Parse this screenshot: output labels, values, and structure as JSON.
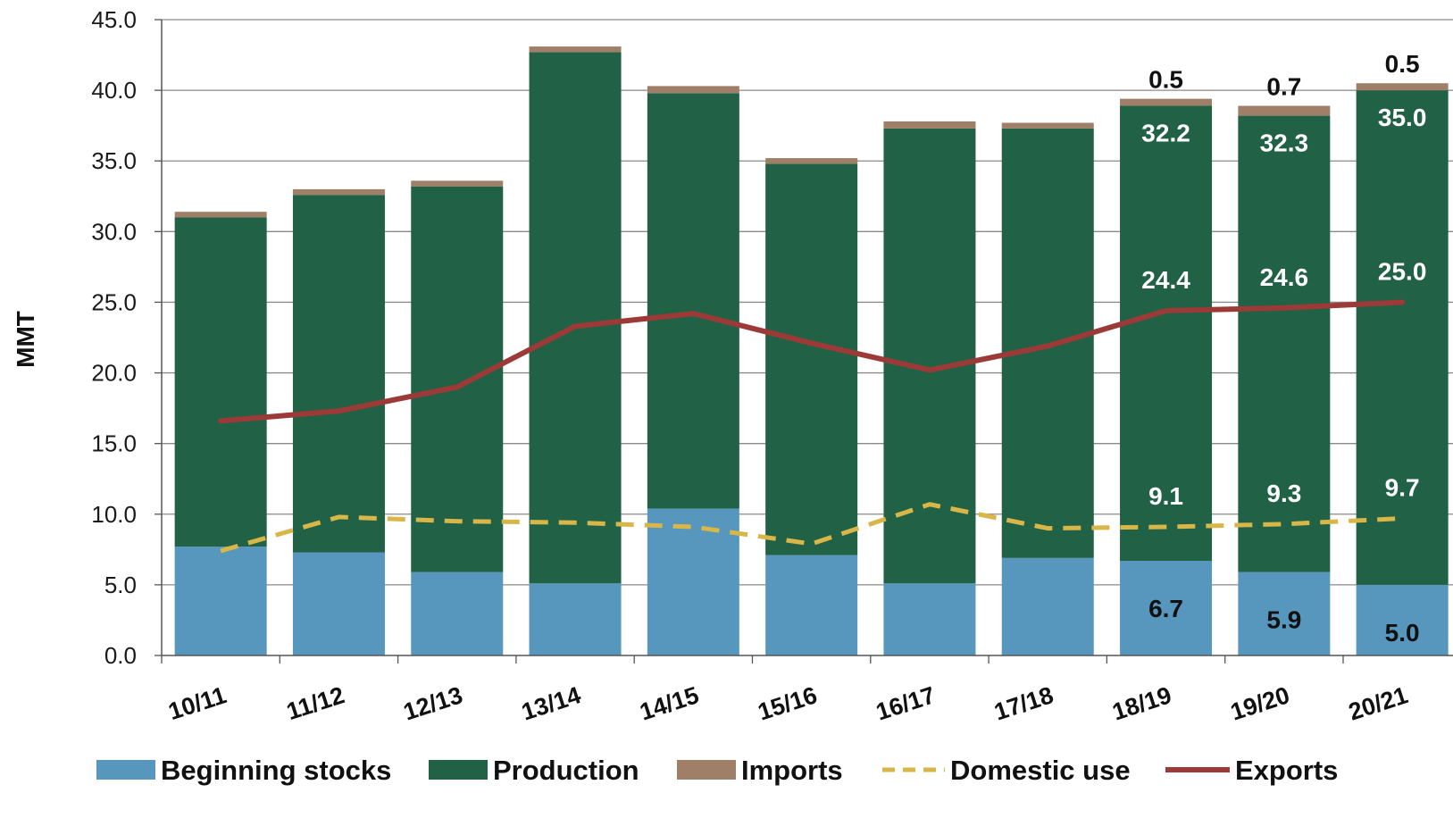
{
  "chart_data": {
    "type": "bar",
    "stacked": true,
    "ylabel": "MMT",
    "xlabel": "",
    "ylim": [
      0,
      45
    ],
    "yticks": [
      "0.0",
      "5.0",
      "10.0",
      "15.0",
      "20.0",
      "25.0",
      "30.0",
      "35.0",
      "40.0",
      "45.0"
    ],
    "grid": "horizontal",
    "legend_position": "bottom",
    "categories": [
      "10/11",
      "11/12",
      "12/13",
      "13/14",
      "14/15",
      "15/16",
      "16/17",
      "17/18",
      "18/19",
      "19/20",
      "20/21"
    ],
    "series": [
      {
        "name": "Beginning stocks",
        "kind": "bar",
        "color": "#5796bd",
        "values": [
          7.7,
          7.3,
          5.9,
          5.1,
          10.4,
          7.1,
          5.1,
          6.9,
          6.7,
          5.9,
          5.0
        ]
      },
      {
        "name": "Production",
        "kind": "bar",
        "color": "#216146",
        "values": [
          23.3,
          25.3,
          27.3,
          37.6,
          29.4,
          27.7,
          32.2,
          30.4,
          32.2,
          32.3,
          35.0
        ]
      },
      {
        "name": "Imports",
        "kind": "bar",
        "color": "#a07f69",
        "values": [
          0.4,
          0.4,
          0.4,
          0.4,
          0.5,
          0.4,
          0.5,
          0.4,
          0.5,
          0.7,
          0.5
        ]
      },
      {
        "name": "Domestic use",
        "kind": "line",
        "dashed": true,
        "color": "#d9b648",
        "values": [
          7.4,
          9.8,
          9.5,
          9.4,
          9.1,
          7.9,
          10.7,
          9.0,
          9.1,
          9.3,
          9.7
        ]
      },
      {
        "name": "Exports",
        "kind": "line",
        "dashed": false,
        "color": "#9c3a38",
        "values": [
          16.6,
          17.3,
          19.0,
          23.3,
          24.2,
          22.1,
          20.2,
          21.9,
          24.4,
          24.6,
          25.0
        ]
      }
    ],
    "data_labels": [
      {
        "category": "18/19",
        "series": "Beginning stocks",
        "text": "6.7",
        "color": "#111111"
      },
      {
        "category": "19/20",
        "series": "Beginning stocks",
        "text": "5.9",
        "color": "#111111"
      },
      {
        "category": "20/21",
        "series": "Beginning stocks",
        "text": "5.0",
        "color": "#111111"
      },
      {
        "category": "18/19",
        "series": "Production",
        "text": "32.2",
        "color": "#ffffff"
      },
      {
        "category": "19/20",
        "series": "Production",
        "text": "32.3",
        "color": "#ffffff"
      },
      {
        "category": "20/21",
        "series": "Production",
        "text": "35.0",
        "color": "#ffffff"
      },
      {
        "category": "18/19",
        "series": "Imports",
        "text": "0.5",
        "color": "#111111"
      },
      {
        "category": "19/20",
        "series": "Imports",
        "text": "0.7",
        "color": "#111111"
      },
      {
        "category": "20/21",
        "series": "Imports",
        "text": "0.5",
        "color": "#111111"
      },
      {
        "category": "18/19",
        "series": "Domestic use",
        "text": "9.1",
        "color": "#ffffff"
      },
      {
        "category": "19/20",
        "series": "Domestic use",
        "text": "9.3",
        "color": "#ffffff"
      },
      {
        "category": "20/21",
        "series": "Domestic use",
        "text": "9.7",
        "color": "#ffffff"
      },
      {
        "category": "18/19",
        "series": "Exports",
        "text": "24.4",
        "color": "#ffffff"
      },
      {
        "category": "19/20",
        "series": "Exports",
        "text": "24.6",
        "color": "#ffffff"
      },
      {
        "category": "20/21",
        "series": "Exports",
        "text": "25.0",
        "color": "#ffffff"
      }
    ]
  }
}
